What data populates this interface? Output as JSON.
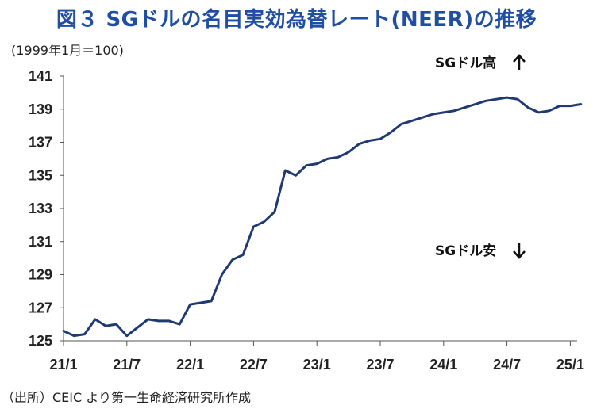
{
  "title": "図３ SGドルの名目実効為替レート(NEER)の推移",
  "unit": "(1999年1月＝100)",
  "source": "（出所）CEIC より第一生命経済研究所作成",
  "chart_data": {
    "type": "line",
    "title": "図３ SGドルの名目実効為替レート(NEER)の推移",
    "ylabel": "(1999年1月＝100)",
    "xlabel": "",
    "ylim": [
      125,
      141
    ],
    "yticks": [
      125,
      127,
      129,
      131,
      133,
      135,
      137,
      139,
      141
    ],
    "xtick_labels": [
      "21/1",
      "21/7",
      "22/1",
      "22/7",
      "23/1",
      "23/7",
      "24/1",
      "24/7",
      "25/1"
    ],
    "grid": false,
    "line_color": "#1f3a73",
    "annotations": [
      {
        "text": "SGドル高",
        "arrow": "up"
      },
      {
        "text": "SGドル安",
        "arrow": "down"
      }
    ],
    "series": [
      {
        "x": [
          "21/1",
          "21/2",
          "21/3",
          "21/4",
          "21/5",
          "21/6",
          "21/7",
          "21/8",
          "21/9",
          "21/10",
          "21/11",
          "21/12",
          "22/1",
          "22/2",
          "22/3",
          "22/4",
          "22/5",
          "22/6",
          "22/7",
          "22/8",
          "22/9",
          "22/10",
          "22/11",
          "22/12",
          "23/1",
          "23/2",
          "23/3",
          "23/4",
          "23/5",
          "23/6",
          "23/7",
          "23/8",
          "23/9",
          "23/10",
          "23/11",
          "23/12",
          "24/1",
          "24/2",
          "24/3",
          "24/4",
          "24/5",
          "24/6",
          "24/7",
          "24/8",
          "24/9",
          "24/10",
          "24/11",
          "24/12",
          "25/1",
          "25/2"
        ],
        "values": [
          125.6,
          125.3,
          125.4,
          126.3,
          125.9,
          126.0,
          125.3,
          125.8,
          126.3,
          126.2,
          126.2,
          126.0,
          127.2,
          127.3,
          127.4,
          129.0,
          129.9,
          130.2,
          131.9,
          132.2,
          132.8,
          135.3,
          135.0,
          135.6,
          135.7,
          136.0,
          136.1,
          136.4,
          136.9,
          137.1,
          137.2,
          137.6,
          138.1,
          138.3,
          138.5,
          138.7,
          138.8,
          138.9,
          139.1,
          139.3,
          139.5,
          139.6,
          139.7,
          139.6,
          139.1,
          138.8,
          138.9,
          139.2,
          139.2,
          139.3
        ]
      }
    ]
  }
}
